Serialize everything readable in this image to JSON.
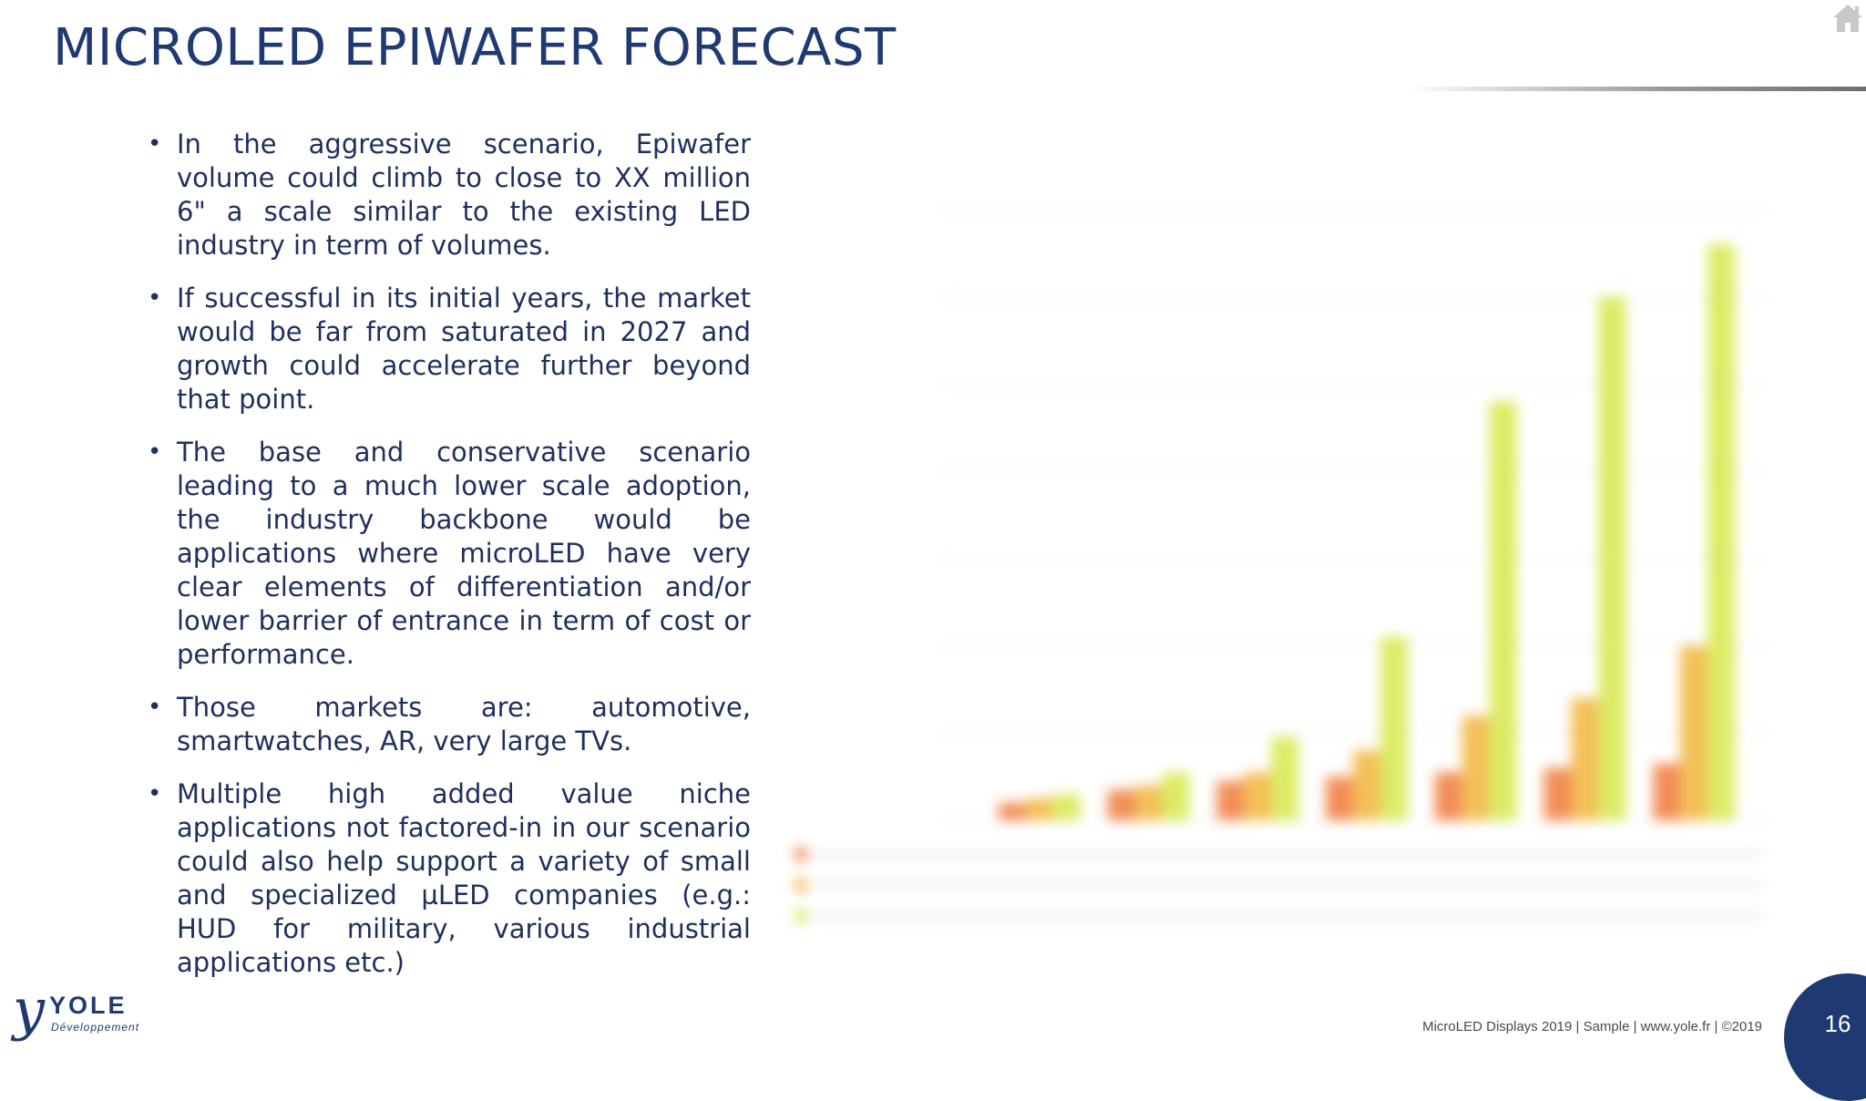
{
  "slide": {
    "title": "MICROLED EPIWAFER FORECAST",
    "bullets": [
      "In the aggressive scenario, Epiwafer volume could climb to close to XX million 6\" a scale similar to the existing LED industry in term of volumes.",
      "If successful in its initial years, the market would be far from saturated in 2027 and growth could accelerate further beyond that point.",
      "The base and conservative scenario leading to a much lower scale adoption, the industry backbone would be applications where microLED have very clear elements of differentiation and/or lower barrier of entrance in term of cost or performance.",
      "Those markets are: automotive, smartwatches, AR, very large TVs.",
      "Multiple high added value niche applications not factored-in in our scenario could also help support a variety of small and specialized µLED companies (e.g.: HUD for military, various industrial applications etc.)"
    ]
  },
  "logo": {
    "mark": "y",
    "name": "YOLE",
    "sub": "Développement"
  },
  "footer": {
    "text": "MicroLED Displays 2019 | Sample | www.yole.fr | ©2019",
    "page": "16"
  },
  "icons": {
    "home": "home-icon"
  },
  "colors": {
    "navy": "#1f3a73",
    "bar_conservative": "#f07a3a",
    "bar_base": "#f2b43a",
    "bar_aggressive": "#d6e84a"
  },
  "chart_data": {
    "type": "bar",
    "title": "",
    "xlabel": "",
    "ylabel": "",
    "categories": [
      "",
      "",
      "",
      "",
      "",
      "",
      ""
    ],
    "series": [
      {
        "values": [
          0.2,
          0.35,
          0.45,
          0.5,
          0.55,
          0.6,
          0.65
        ]
      },
      {
        "values": [
          0.25,
          0.4,
          0.55,
          0.8,
          1.2,
          1.4,
          2.0
        ]
      },
      {
        "values": [
          0.3,
          0.55,
          0.95,
          2.1,
          4.8,
          6.0,
          6.6
        ]
      }
    ],
    "ylim": [
      0,
      7
    ],
    "grid": true,
    "legend": "bottom-left"
  }
}
